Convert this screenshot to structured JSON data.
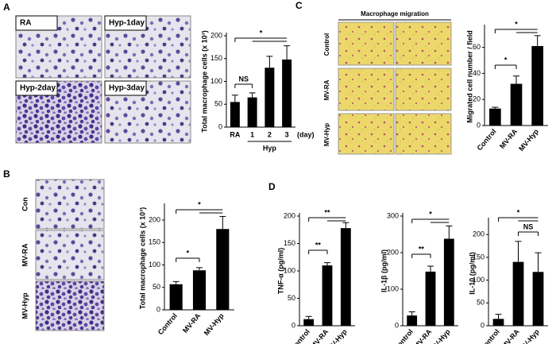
{
  "panels": [
    "A",
    "B",
    "C",
    "D"
  ],
  "images": {
    "A": [
      "RA",
      "Hyp-1day",
      "Hyp-2day",
      "Hyp-3day"
    ],
    "B": [
      "Con",
      "MV-RA",
      "MV-Hyp"
    ],
    "C": {
      "title": "Macrophage migration",
      "rows": [
        "Control",
        "MV-RA",
        "MV-Hyp"
      ]
    }
  },
  "chart_data": [
    {
      "type": "bar",
      "ylabel": "Total macrophage cells (x 10³)",
      "categories": [
        "RA",
        "1",
        "2",
        "3"
      ],
      "values": [
        55,
        65,
        130,
        148
      ],
      "errors": [
        15,
        10,
        25,
        30
      ],
      "color": "#000000",
      "ylim": [
        0,
        200
      ],
      "yticks": [
        0,
        50,
        100,
        150,
        200
      ],
      "group_label": "Hyp",
      "x_unit": "(day)",
      "annotations": [
        "NS",
        "*"
      ]
    },
    {
      "type": "bar",
      "ylabel": "Total macrophage cells (x 10³)",
      "categories": [
        "Control",
        "MV-RA",
        "MV-Hyp"
      ],
      "values": [
        57,
        88,
        180
      ],
      "errors": [
        6,
        6,
        28
      ],
      "color": "#000000",
      "ylim": [
        0,
        230
      ],
      "yticks": [
        0,
        50,
        100,
        150,
        200
      ],
      "annotations": [
        "*",
        "*"
      ]
    },
    {
      "type": "bar",
      "ylabel": "Migrated cell number / field",
      "categories": [
        "Control",
        "MV-RA",
        "MV-Hyp"
      ],
      "values": [
        13,
        32,
        61
      ],
      "errors": [
        1,
        6,
        8
      ],
      "color": "#000000",
      "ylim": [
        0,
        75
      ],
      "yticks": [
        0,
        20,
        40,
        60
      ],
      "annotations": [
        "*",
        "*"
      ]
    },
    {
      "type": "bar",
      "ylabel": "TNF-α (pg/ml)",
      "categories": [
        "Control",
        "MV-RA",
        "MV-Hyp"
      ],
      "values": [
        12,
        110,
        178
      ],
      "errors": [
        5,
        5,
        10
      ],
      "color": "#000000",
      "ylim": [
        0,
        200
      ],
      "yticks": [
        0,
        50,
        100,
        150,
        200
      ],
      "annotations": [
        "**",
        "**"
      ]
    },
    {
      "type": "bar",
      "ylabel": "IL-1β (pg/ml)",
      "categories": [
        "Control",
        "MV-RA",
        "MV-Hyp"
      ],
      "values": [
        28,
        148,
        238
      ],
      "errors": [
        10,
        15,
        35
      ],
      "color": "#000000",
      "ylim": [
        0,
        300
      ],
      "yticks": [
        0,
        100,
        200,
        300
      ],
      "annotations": [
        "**",
        "*"
      ]
    },
    {
      "type": "bar",
      "ylabel": "IL-10 (pg/ml)",
      "categories": [
        "Control",
        "MV-RA",
        "MV-Hyp"
      ],
      "values": [
        15,
        140,
        118
      ],
      "errors": [
        10,
        45,
        42
      ],
      "color": "#000000",
      "ylim": [
        0,
        230
      ],
      "yticks": [
        0,
        50,
        100,
        150,
        200
      ],
      "annotations": [
        "*",
        "NS"
      ]
    }
  ]
}
